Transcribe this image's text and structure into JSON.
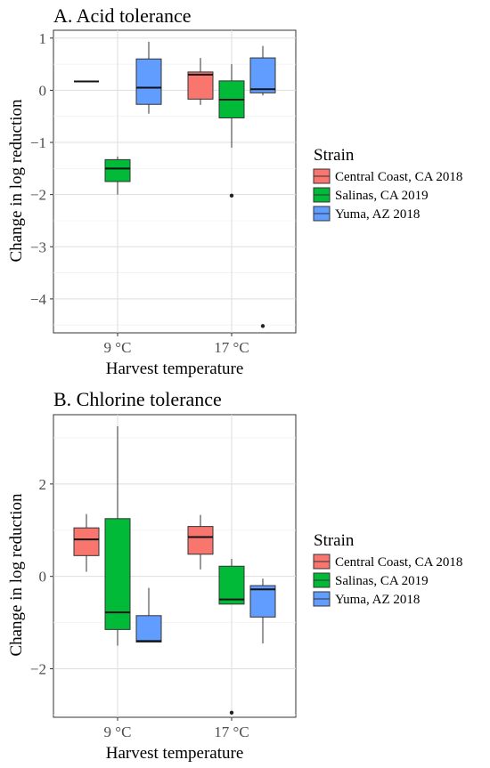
{
  "colors": {
    "Central Coast, CA 2018": "#F8766D",
    "Salinas, CA 2019": "#00BA38",
    "Yuma, AZ 2018": "#619CFF"
  },
  "chart_data": [
    {
      "type": "box",
      "title": "A. Acid tolerance",
      "xlabel": "Harvest temperature",
      "ylabel": "Change in log reduction",
      "categories": [
        "9 °C",
        "17 °C"
      ],
      "y_ticks": [
        "1",
        "0",
        "−1",
        "−2",
        "−3",
        "−4"
      ],
      "y_tick_values": [
        1,
        0,
        -1,
        -2,
        -3,
        -4
      ],
      "ylim": [
        -4.65,
        1.15
      ],
      "grid": true,
      "legend_title": "Strain",
      "legend_labels": [
        "Central Coast, CA 2018",
        "Salinas, CA 2019",
        "Yuma, AZ 2018"
      ],
      "series": [
        {
          "name": "Central Coast, CA 2018",
          "boxes": [
            {
              "category": "9 °C",
              "lower_whisker": 0.17,
              "q1": 0.17,
              "median": 0.17,
              "q3": 0.17,
              "upper_whisker": 0.17,
              "outliers": []
            },
            {
              "category": "17 °C",
              "lower_whisker": -0.28,
              "q1": -0.17,
              "median": 0.3,
              "q3": 0.35,
              "upper_whisker": 0.62,
              "outliers": []
            }
          ]
        },
        {
          "name": "Salinas, CA 2019",
          "boxes": [
            {
              "category": "9 °C",
              "lower_whisker": -2.0,
              "q1": -1.75,
              "median": -1.5,
              "q3": -1.33,
              "upper_whisker": -1.27,
              "outliers": []
            },
            {
              "category": "17 °C",
              "lower_whisker": -1.1,
              "q1": -0.53,
              "median": -0.18,
              "q3": 0.18,
              "upper_whisker": 0.5,
              "outliers": [
                -2.02
              ]
            }
          ]
        },
        {
          "name": "Yuma, AZ 2018",
          "boxes": [
            {
              "category": "9 °C",
              "lower_whisker": -0.45,
              "q1": -0.27,
              "median": 0.05,
              "q3": 0.6,
              "upper_whisker": 0.93,
              "outliers": []
            },
            {
              "category": "17 °C",
              "lower_whisker": -0.1,
              "q1": -0.05,
              "median": 0.02,
              "q3": 0.62,
              "upper_whisker": 0.85,
              "outliers": [
                -4.52
              ]
            }
          ]
        }
      ]
    },
    {
      "type": "box",
      "title": "B. Chlorine tolerance",
      "xlabel": "Harvest temperature",
      "ylabel": "Change in log reduction",
      "categories": [
        "9 °C",
        "17 °C"
      ],
      "y_ticks": [
        "2",
        "0",
        "−2"
      ],
      "y_tick_values": [
        2,
        0,
        -2
      ],
      "ylim": [
        -3.05,
        3.5
      ],
      "grid": true,
      "legend_title": "Strain",
      "legend_labels": [
        "Central Coast, CA 2018",
        "Salinas, CA 2019",
        "Yuma, AZ 2018"
      ],
      "series": [
        {
          "name": "Central Coast, CA 2018",
          "boxes": [
            {
              "category": "9 °C",
              "lower_whisker": 0.1,
              "q1": 0.45,
              "median": 0.8,
              "q3": 1.05,
              "upper_whisker": 1.35,
              "outliers": []
            },
            {
              "category": "17 °C",
              "lower_whisker": 0.15,
              "q1": 0.48,
              "median": 0.85,
              "q3": 1.08,
              "upper_whisker": 1.33,
              "outliers": []
            }
          ]
        },
        {
          "name": "Salinas, CA 2019",
          "boxes": [
            {
              "category": "9 °C",
              "lower_whisker": -1.5,
              "q1": -1.15,
              "median": -0.78,
              "q3": 1.25,
              "upper_whisker": 3.25,
              "outliers": []
            },
            {
              "category": "17 °C",
              "lower_whisker": -0.6,
              "q1": -0.6,
              "median": -0.5,
              "q3": 0.22,
              "upper_whisker": 0.38,
              "outliers": [
                -2.95
              ]
            }
          ]
        },
        {
          "name": "Yuma, AZ 2018",
          "boxes": [
            {
              "category": "9 °C",
              "lower_whisker": -1.42,
              "q1": -1.42,
              "median": -1.4,
              "q3": -0.85,
              "upper_whisker": -0.25,
              "outliers": []
            },
            {
              "category": "17 °C",
              "lower_whisker": -1.45,
              "q1": -0.88,
              "median": -0.28,
              "q3": -0.2,
              "upper_whisker": -0.05,
              "outliers": []
            }
          ]
        }
      ]
    }
  ]
}
